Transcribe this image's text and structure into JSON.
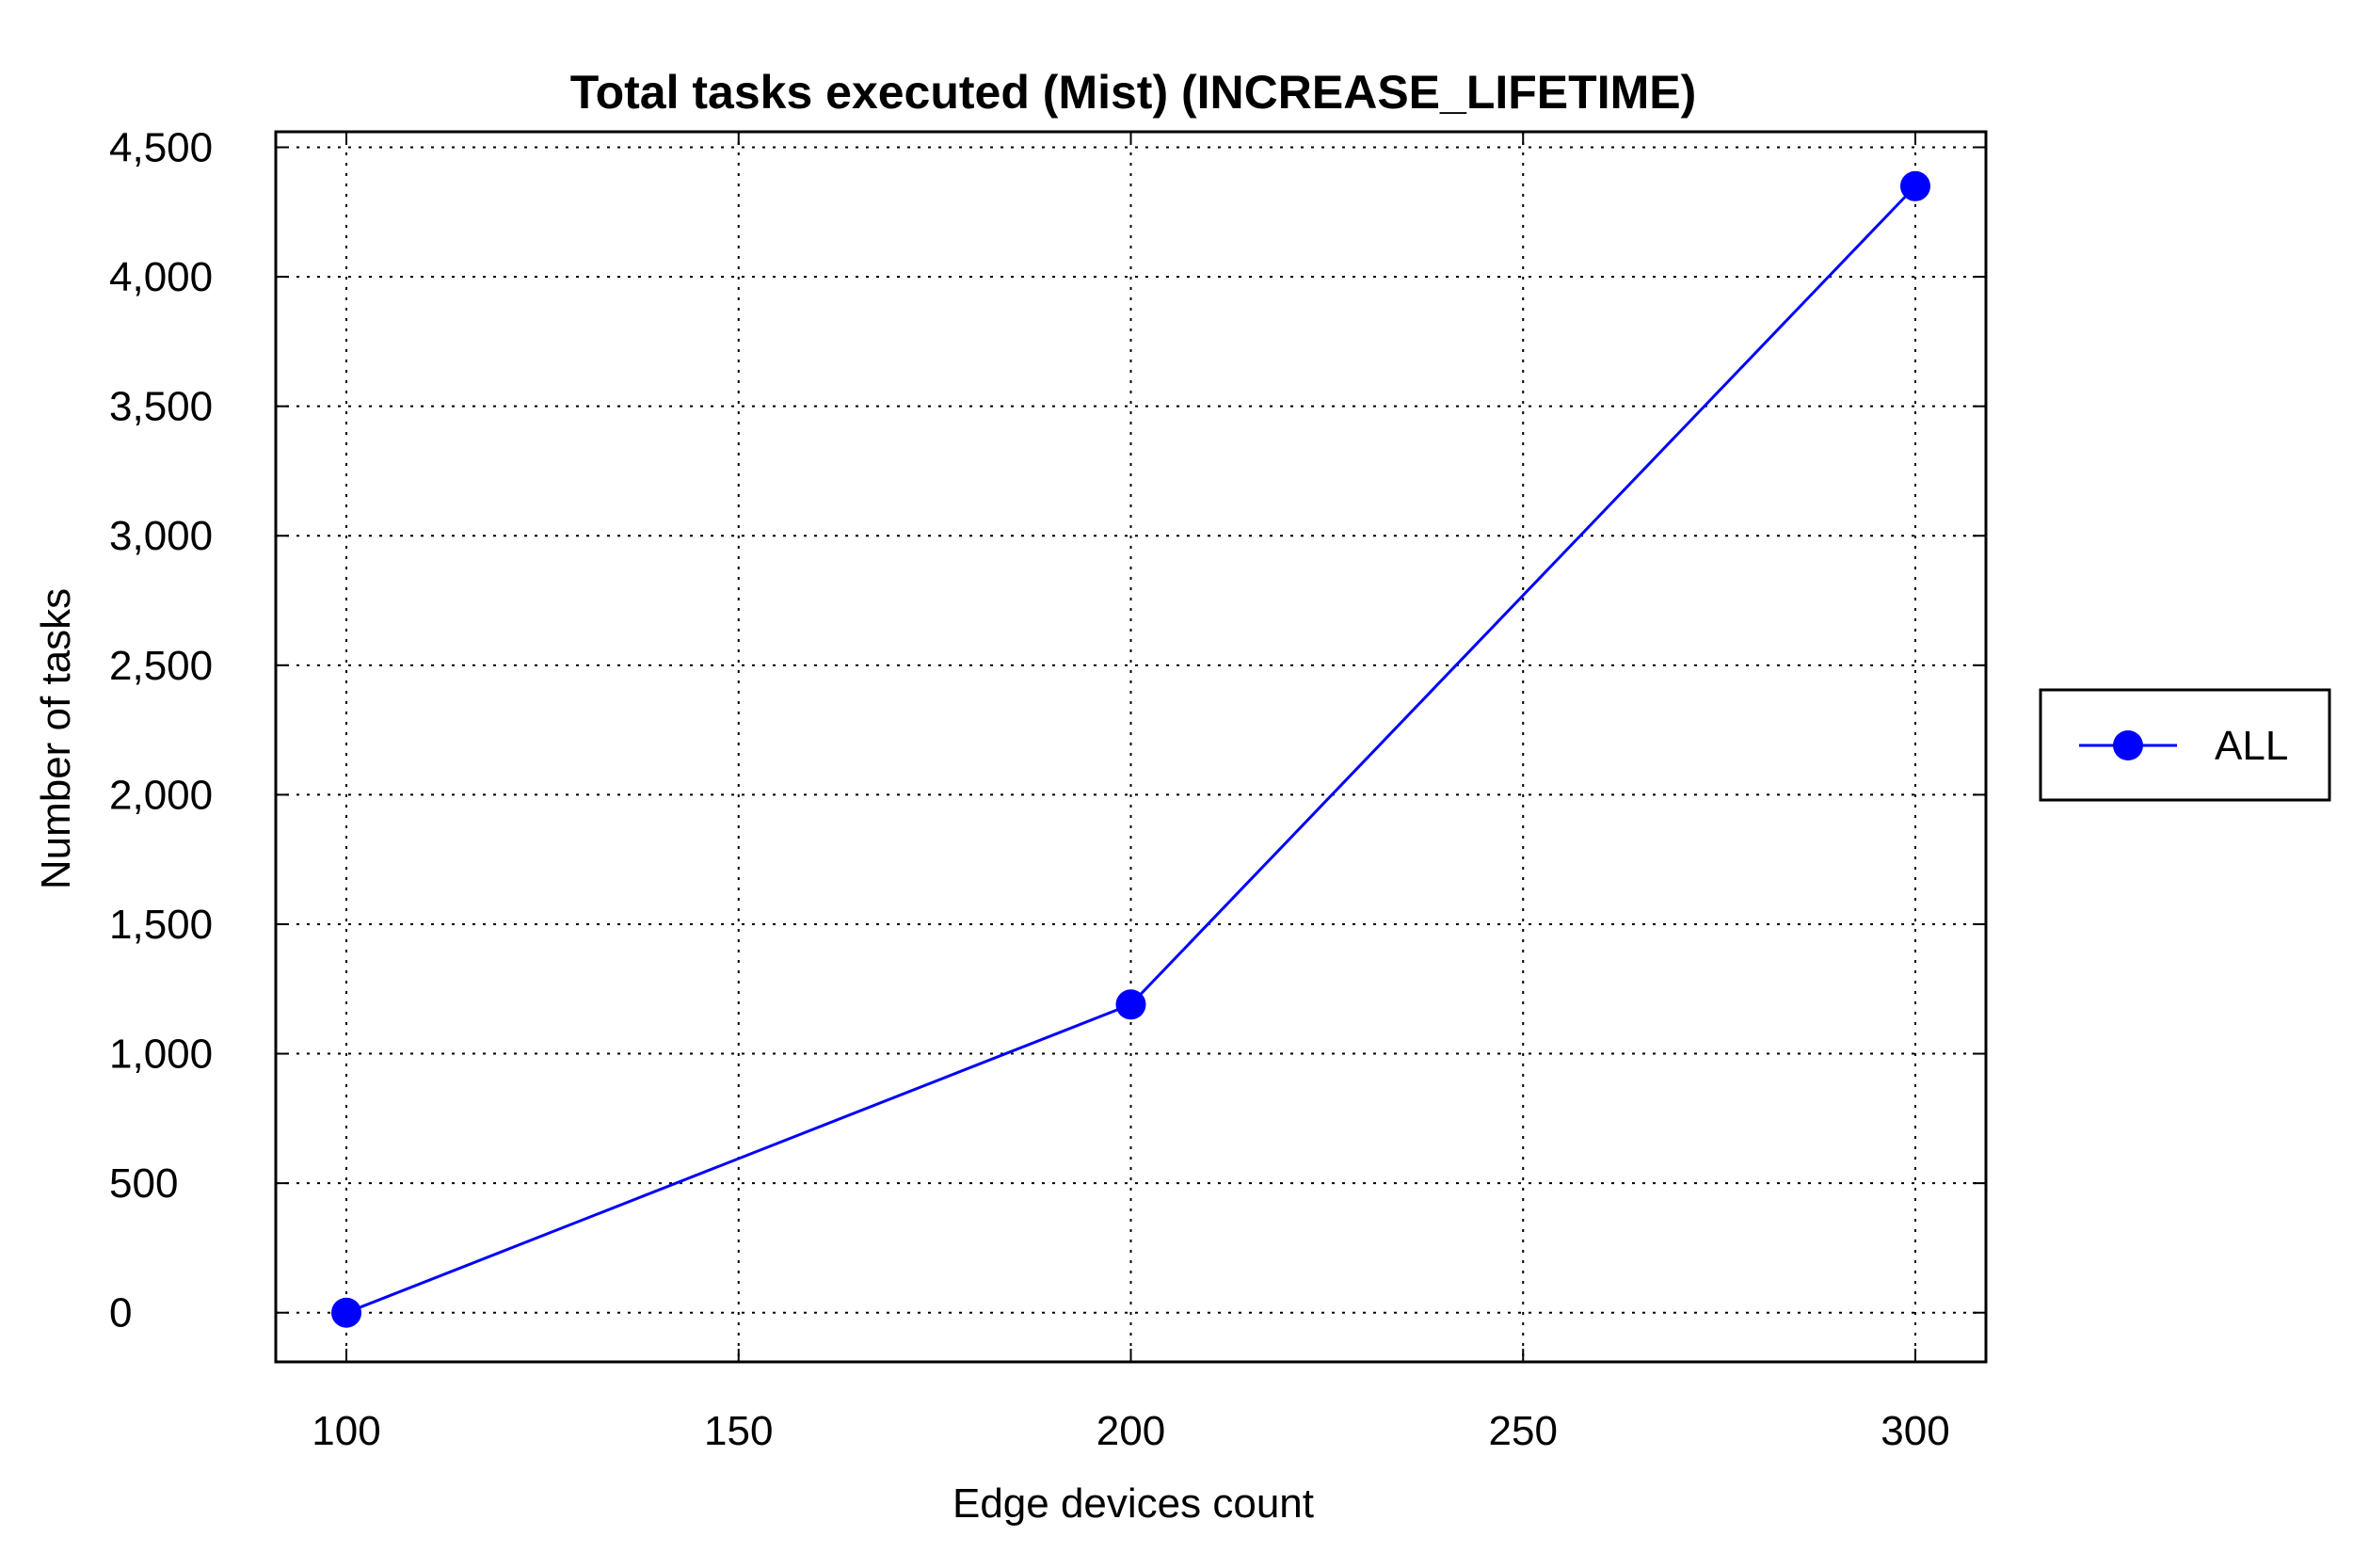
{
  "chart_data": {
    "type": "line",
    "title": "Total tasks executed (Mist) (INCREASE_LIFETIME)",
    "xlabel": "Edge devices count",
    "ylabel": "Number of tasks",
    "x": [
      100,
      200,
      300
    ],
    "series": [
      {
        "name": "ALL",
        "values": [
          0,
          1190,
          4350
        ],
        "color": "#0000ff"
      }
    ],
    "xlim": [
      91,
      309
    ],
    "ylim": [
      -190,
      4560
    ],
    "xticks": [
      100,
      150,
      200,
      250,
      300
    ],
    "xtick_labels": [
      "100",
      "150",
      "200",
      "250",
      "300"
    ],
    "yticks": [
      0,
      500,
      1000,
      1500,
      2000,
      2500,
      3000,
      3500,
      4000,
      4500
    ],
    "ytick_labels": [
      "0",
      "500",
      "1,000",
      "1,500",
      "2,000",
      "2,500",
      "3,000",
      "3,500",
      "4,000",
      "4,500"
    ],
    "grid": true,
    "grid_style": "dotted",
    "legend_position": "right"
  }
}
